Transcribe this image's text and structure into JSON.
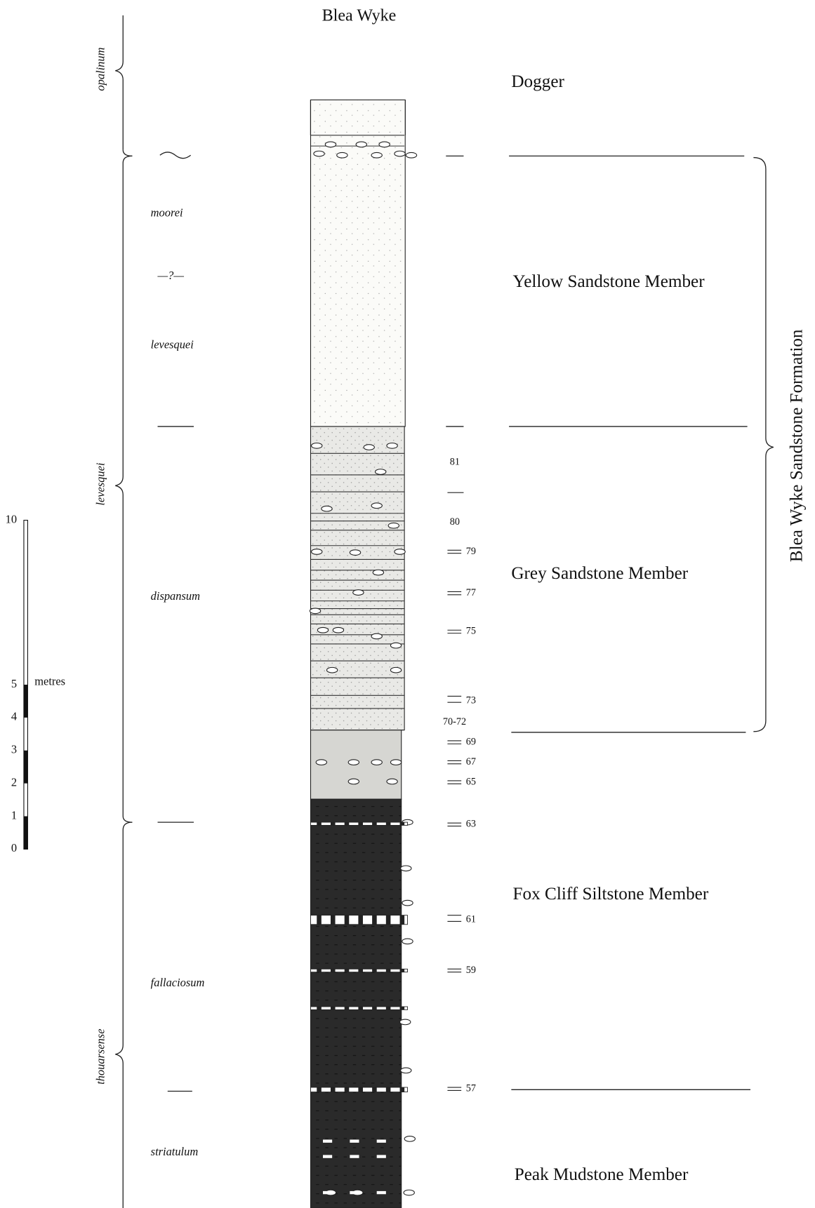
{
  "title": "Blea Wyke",
  "zones": [
    "opalinum",
    "levesquei",
    "thouarsense"
  ],
  "subzones": [
    "moorei",
    "—?—",
    "levesquei",
    "dispansum",
    "fallaciosum",
    "striatulum"
  ],
  "members": [
    "Dogger",
    "Yellow Sandstone Member",
    "Grey Sandstone Member",
    "Fox Cliff Siltstone Member",
    "Peak Mudstone Member"
  ],
  "formation": "Blea Wyke Sandstone Formation",
  "beds": [
    "81",
    "80",
    "79",
    "77",
    "75",
    "73",
    "70-72",
    "69",
    "67",
    "65",
    "63",
    "61",
    "59",
    "57"
  ],
  "scale": {
    "labels": [
      "0",
      "1",
      "2",
      "3",
      "4",
      "5",
      "10"
    ],
    "unit": "metres"
  }
}
